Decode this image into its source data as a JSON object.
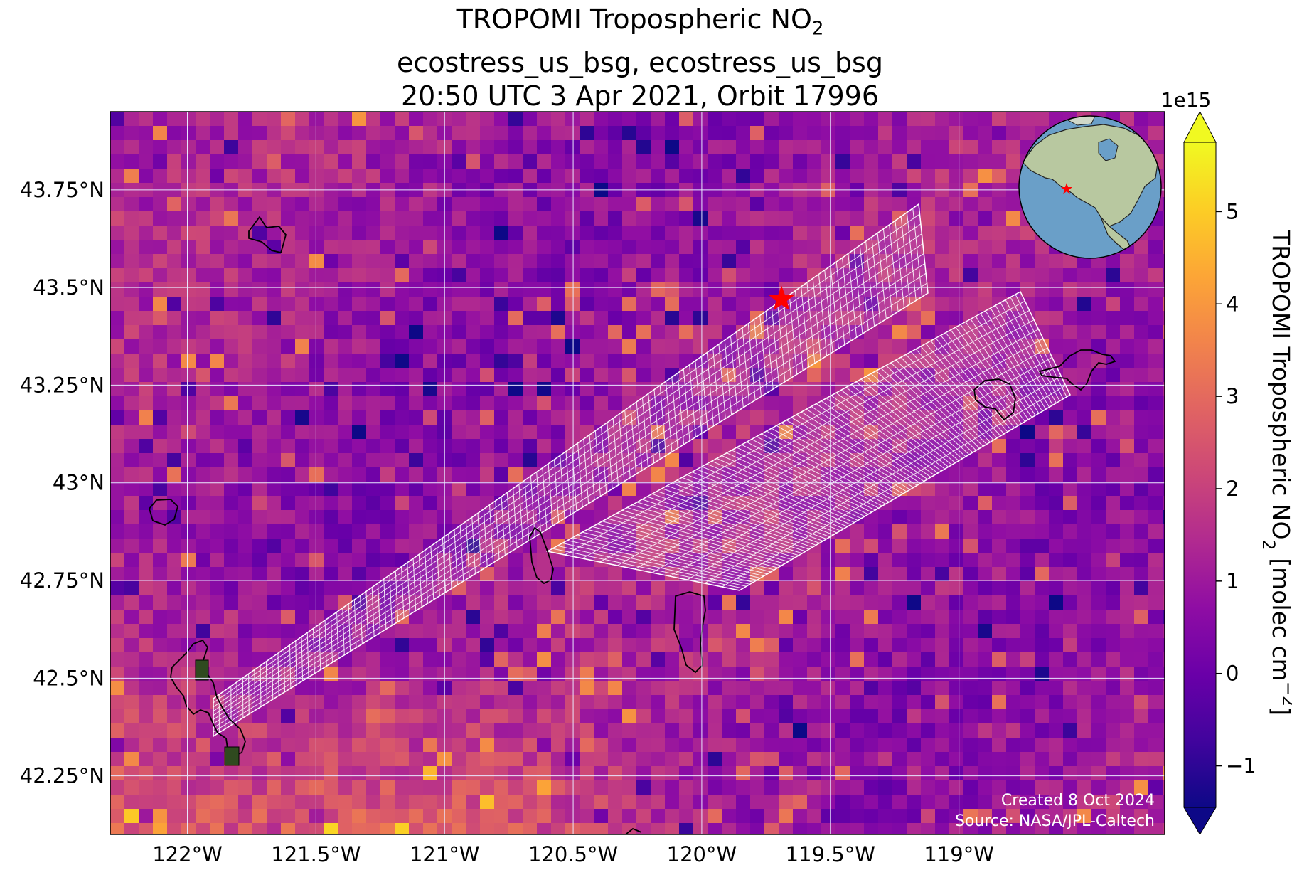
{
  "title": {
    "line1": "TROPOMI Tropospheric NO",
    "line1_sub": "2",
    "line2": "ecostress_us_bsg, ecostress_us_bsg",
    "line3": "20:50 UTC 3 Apr 2021, Orbit 17996"
  },
  "map": {
    "lon_range": [
      -122.3,
      -118.2
    ],
    "lat_range": [
      42.1,
      43.95
    ],
    "lon_ticks": [
      {
        "value": -122.0,
        "label": "122°W"
      },
      {
        "value": -121.5,
        "label": "121.5°W"
      },
      {
        "value": -121.0,
        "label": "121°W"
      },
      {
        "value": -120.5,
        "label": "120.5°W"
      },
      {
        "value": -120.0,
        "label": "120°W"
      },
      {
        "value": -119.5,
        "label": "119.5°W"
      },
      {
        "value": -119.0,
        "label": "119°W"
      }
    ],
    "lat_ticks": [
      {
        "value": 43.75,
        "label": "43.75°N"
      },
      {
        "value": 43.5,
        "label": "43.5°N"
      },
      {
        "value": 43.25,
        "label": "43.25°N"
      },
      {
        "value": 43.0,
        "label": "43°N"
      },
      {
        "value": 42.75,
        "label": "42.75°N"
      },
      {
        "value": 42.5,
        "label": "42.5°N"
      },
      {
        "value": 42.25,
        "label": "42.25°N"
      }
    ],
    "site_marker": {
      "name": "ecostress_us_bsg",
      "lon": -119.69,
      "lat": 43.47,
      "color": "#ff0000"
    },
    "background_color": "#9a2aa0",
    "grid_color": "#e8e8ff"
  },
  "colorbar": {
    "label_main": "TROPOMI Tropospheric NO",
    "label_sub": "2",
    "label_units": " [molec cm",
    "label_sup": "−2",
    "label_end": "]",
    "exponent": "1e15",
    "range": [
      -1.45,
      5.75
    ],
    "ticks": [
      {
        "value": -1,
        "label": "−1"
      },
      {
        "value": 0,
        "label": "0"
      },
      {
        "value": 1,
        "label": "1"
      },
      {
        "value": 2,
        "label": "2"
      },
      {
        "value": 3,
        "label": "3"
      },
      {
        "value": 4,
        "label": "4"
      },
      {
        "value": 5,
        "label": "5"
      }
    ],
    "colormap": "plasma",
    "colors": [
      "#0d0887",
      "#41049d",
      "#6a00a8",
      "#8f0da4",
      "#b12a90",
      "#cc4778",
      "#e16462",
      "#f2844b",
      "#fca636",
      "#fcce25",
      "#f0f921"
    ]
  },
  "globe_inset": {
    "ocean_color": "#6a9fc8",
    "land_color": "#b8c8a0",
    "marker_color": "#ff0000"
  },
  "credits": {
    "created": "Created 8 Oct 2024",
    "source": "Source: NASA/JPL-Caltech"
  }
}
